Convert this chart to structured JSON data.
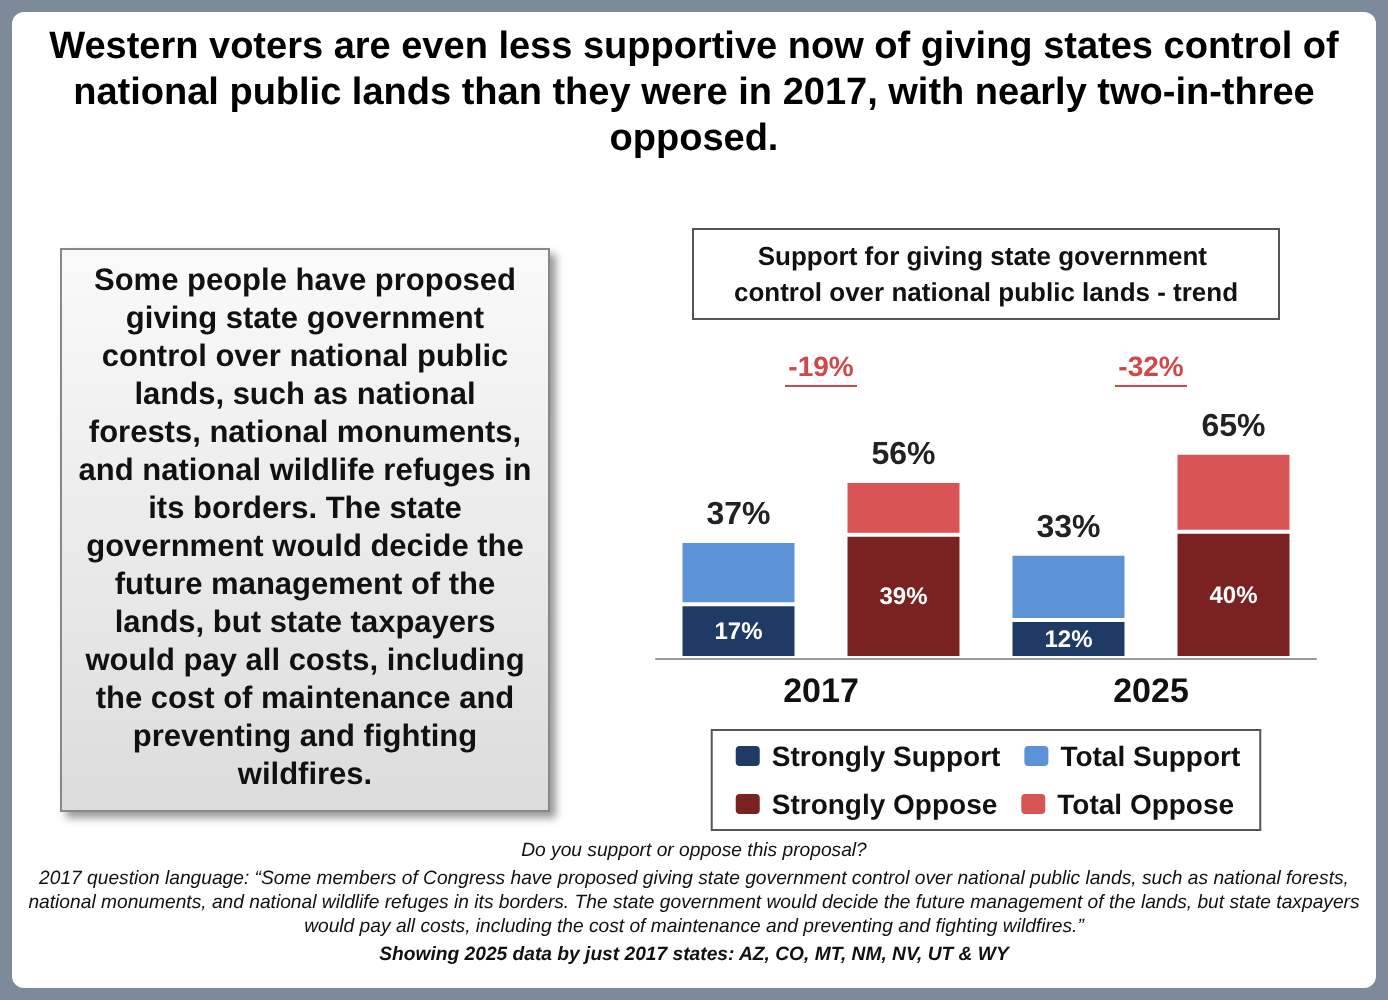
{
  "chart_data": {
    "type": "bar",
    "title": "Western voters are even less supportive now of giving states control of national public lands than they were in 2017, with nearly two-in-three opposed.",
    "subtitle": "Support for giving state government control over national public lands - trend",
    "categories": [
      "2017",
      null,
      "2025",
      null
    ],
    "legend": "bottom",
    "stacked": true,
    "series": [
      {
        "name": "Strongly Support",
        "color": "#1f3a64",
        "values": [
          17,
          null,
          12,
          null
        ],
        "value_labels": [
          "17%",
          null,
          "12%",
          null
        ]
      },
      {
        "name": "Total Support",
        "color": "#5b93d6",
        "values": [
          20,
          null,
          21,
          null
        ]
      },
      {
        "name": "Strongly Oppose",
        "color": "#7a2222",
        "values": [
          null,
          39,
          null,
          40
        ],
        "value_labels": [
          null,
          "39%",
          null,
          "40%"
        ]
      },
      {
        "name": "Total Oppose",
        "color": "#d95555",
        "values": [
          null,
          17,
          null,
          25
        ]
      }
    ],
    "totals": [
      "37%",
      "56%",
      "33%",
      "65%"
    ],
    "annotations": [
      "Some people have proposed giving state government control over national public lands, such as national forests, national monuments, and national wildlife refuges in its borders. The state government would decide the future management of the lands, but state taxpayers would pay all costs, including the cost of maintenance and preventing and fighting wildfires.",
      "-19%",
      "-32%",
      "Do you support or oppose this proposal?",
      "2017 question language: “Some members of Congress have proposed giving state government control over national public lands, such as national forests, national monuments, and national wildlife refuges in its borders. The state government would decide the future management of the lands, but state taxpayers would pay all costs, including the cost of maintenance and preventing and fighting wildfires.”",
      "Showing 2025 data by just 2017 states: AZ, CO, MT, NM, NV, UT & WY"
    ]
  }
}
